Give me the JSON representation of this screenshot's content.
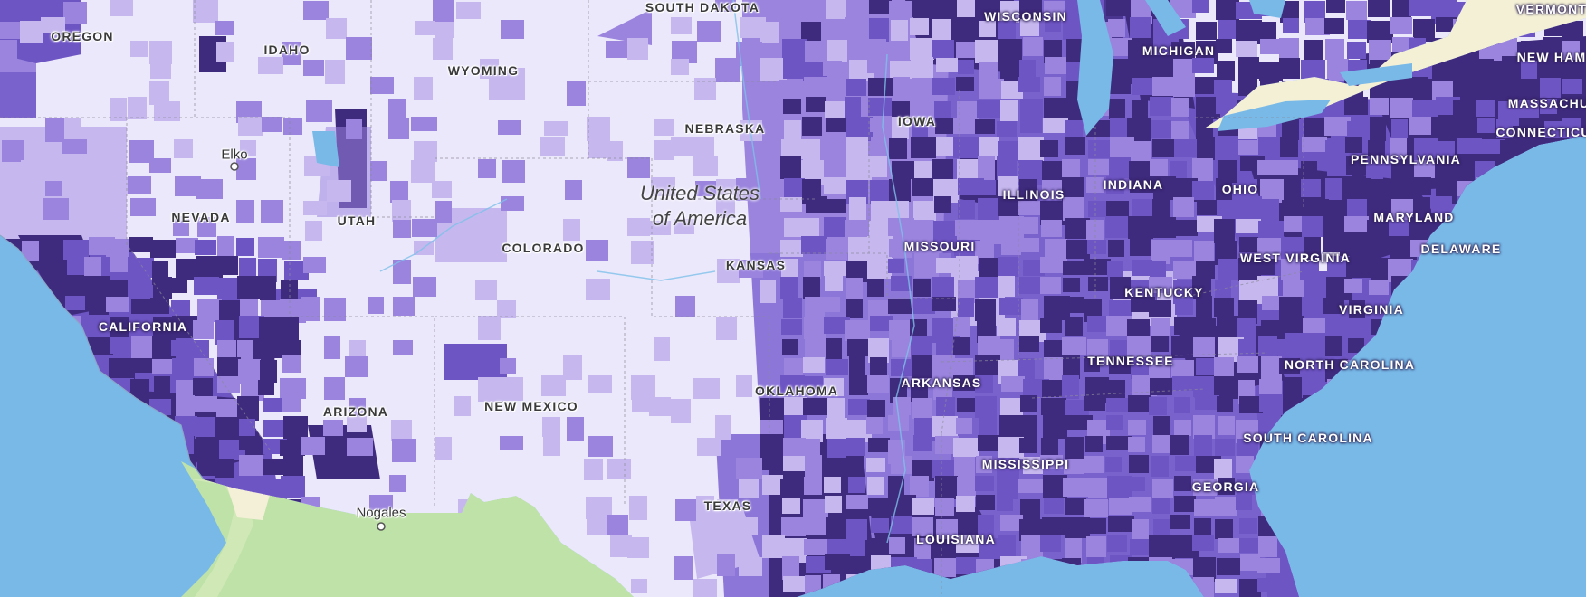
{
  "map": {
    "colors": {
      "ocean": "#78b9e8",
      "land_mexico": "#bfe2a8",
      "land_canada": "#f3f0d6",
      "land_canada_green": "#b7dea0",
      "desert_tan": "#f4f0d8",
      "choropleth_scale": [
        "#ece8fb",
        "#c6b8ee",
        "#9a84de",
        "#6e55c4",
        "#3f2b7d"
      ]
    },
    "country_label": {
      "line1": "United States",
      "line2": "of America"
    },
    "state_labels": {
      "oregon": "OREGON",
      "idaho": "IDAHO",
      "wyoming": "WYOMING",
      "south_dakota": "SOUTH DAKOTA",
      "wisconsin": "WISCONSIN",
      "michigan": "MICHIGAN",
      "vermont": "VERMONT",
      "new_hampshire": "NEW HAM",
      "massachusetts": "MASSACHU",
      "connecticut": "CONNECTICU",
      "nebraska": "NEBRASKA",
      "iowa": "IOWA",
      "illinois": "ILLINOIS",
      "indiana": "INDIANA",
      "ohio": "OHIO",
      "pennsylvania": "PENNSYLVANIA",
      "nevada": "NEVADA",
      "utah": "UTAH",
      "colorado": "COLORADO",
      "kansas": "KANSAS",
      "missouri": "MISSOURI",
      "maryland": "MARYLAND",
      "delaware": "DELAWARE",
      "west_virginia": "WEST VIRGINIA",
      "kentucky": "KENTUCKY",
      "virginia": "VIRGINIA",
      "california": "CALIFORNIA",
      "tennessee": "TENNESSEE",
      "north_carolina": "NORTH CAROLINA",
      "oklahoma": "OKLAHOMA",
      "arkansas": "ARKANSAS",
      "arizona": "ARIZONA",
      "new_mexico": "NEW MEXICO",
      "south_carolina": "SOUTH CAROLINA",
      "mississippi": "MISSISSIPPI",
      "georgia": "GEORGIA",
      "texas": "TEXAS",
      "louisiana": "LOUISIANA"
    },
    "city_labels": {
      "elko": "Elko",
      "nogales": "Nogales"
    },
    "density_regions": {
      "northwest": 0.15,
      "northern_plains": 0.1,
      "southwest": 0.2,
      "midwest": 0.55,
      "south_central": 0.6,
      "southeast": 0.72,
      "northeast": 0.82,
      "coastal_california": 0.78
    }
  }
}
